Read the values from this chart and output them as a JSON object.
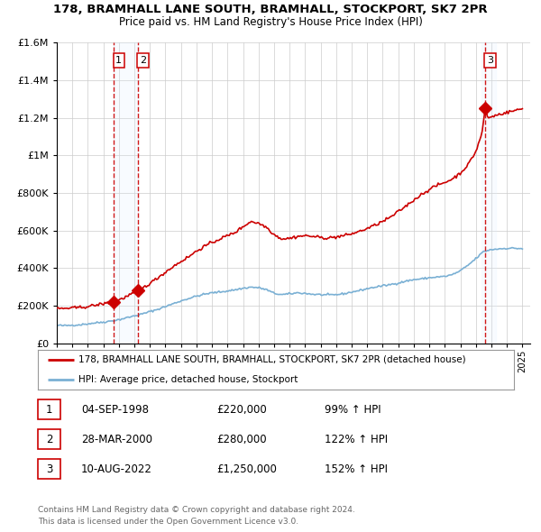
{
  "title1": "178, BRAMHALL LANE SOUTH, BRAMHALL, STOCKPORT, SK7 2PR",
  "title2": "Price paid vs. HM Land Registry's House Price Index (HPI)",
  "ylim": [
    0,
    1600000
  ],
  "yticks": [
    0,
    200000,
    400000,
    600000,
    800000,
    1000000,
    1200000,
    1400000,
    1600000
  ],
  "xmin": 1995.0,
  "xmax": 2025.5,
  "sale_color": "#cc0000",
  "hpi_color": "#7ab0d4",
  "vline_color": "#cc0000",
  "shade_color": "#ddeeff",
  "legend_line1": "178, BRAMHALL LANE SOUTH, BRAMHALL, STOCKPORT, SK7 2PR (detached house)",
  "legend_line2": "HPI: Average price, detached house, Stockport",
  "transactions": [
    {
      "num": 1,
      "date_num": 1998.674,
      "price": 220000,
      "label": "1"
    },
    {
      "num": 2,
      "date_num": 2000.24,
      "price": 280000,
      "label": "2"
    },
    {
      "num": 3,
      "date_num": 2022.6,
      "price": 1250000,
      "label": "3"
    }
  ],
  "table_rows": [
    [
      "1",
      "04-SEP-1998",
      "£220,000",
      "99% ↑ HPI"
    ],
    [
      "2",
      "28-MAR-2000",
      "£280,000",
      "122% ↑ HPI"
    ],
    [
      "3",
      "10-AUG-2022",
      "£1,250,000",
      "152% ↑ HPI"
    ]
  ],
  "footer": "Contains HM Land Registry data © Crown copyright and database right 2024.\nThis data is licensed under the Open Government Licence v3.0.",
  "bg_color": "#ffffff",
  "grid_color": "#cccccc",
  "hpi_anchors": [
    [
      1995.0,
      95000
    ],
    [
      1995.5,
      93000
    ],
    [
      1996.0,
      96000
    ],
    [
      1996.5,
      98000
    ],
    [
      1997.0,
      103000
    ],
    [
      1997.5,
      108000
    ],
    [
      1998.0,
      112000
    ],
    [
      1998.5,
      118000
    ],
    [
      1999.0,
      125000
    ],
    [
      1999.5,
      135000
    ],
    [
      2000.0,
      145000
    ],
    [
      2000.5,
      155000
    ],
    [
      2001.0,
      168000
    ],
    [
      2001.5,
      180000
    ],
    [
      2002.0,
      195000
    ],
    [
      2002.5,
      210000
    ],
    [
      2003.0,
      225000
    ],
    [
      2003.5,
      238000
    ],
    [
      2004.0,
      250000
    ],
    [
      2004.5,
      260000
    ],
    [
      2005.0,
      268000
    ],
    [
      2005.5,
      272000
    ],
    [
      2006.0,
      278000
    ],
    [
      2006.5,
      284000
    ],
    [
      2007.0,
      292000
    ],
    [
      2007.5,
      298000
    ],
    [
      2008.0,
      295000
    ],
    [
      2008.5,
      285000
    ],
    [
      2009.0,
      265000
    ],
    [
      2009.5,
      258000
    ],
    [
      2010.0,
      262000
    ],
    [
      2010.5,
      268000
    ],
    [
      2011.0,
      265000
    ],
    [
      2011.5,
      260000
    ],
    [
      2012.0,
      258000
    ],
    [
      2012.5,
      256000
    ],
    [
      2013.0,
      258000
    ],
    [
      2013.5,
      263000
    ],
    [
      2014.0,
      272000
    ],
    [
      2014.5,
      280000
    ],
    [
      2015.0,
      290000
    ],
    [
      2015.5,
      298000
    ],
    [
      2016.0,
      305000
    ],
    [
      2016.5,
      312000
    ],
    [
      2017.0,
      320000
    ],
    [
      2017.5,
      330000
    ],
    [
      2018.0,
      338000
    ],
    [
      2018.5,
      342000
    ],
    [
      2019.0,
      348000
    ],
    [
      2019.5,
      352000
    ],
    [
      2020.0,
      355000
    ],
    [
      2020.5,
      365000
    ],
    [
      2021.0,
      385000
    ],
    [
      2021.5,
      415000
    ],
    [
      2022.0,
      450000
    ],
    [
      2022.5,
      488000
    ],
    [
      2023.0,
      498000
    ],
    [
      2023.5,
      502000
    ],
    [
      2024.0,
      505000
    ],
    [
      2024.5,
      505000
    ],
    [
      2025.0,
      503000
    ]
  ],
  "price_anchors": [
    [
      1995.0,
      183000
    ],
    [
      1995.5,
      185000
    ],
    [
      1996.0,
      187000
    ],
    [
      1996.5,
      190000
    ],
    [
      1997.0,
      195000
    ],
    [
      1997.5,
      202000
    ],
    [
      1998.0,
      210000
    ],
    [
      1998.674,
      220000
    ],
    [
      1999.0,
      230000
    ],
    [
      1999.5,
      248000
    ],
    [
      2000.24,
      280000
    ],
    [
      2000.5,
      292000
    ],
    [
      2001.0,
      318000
    ],
    [
      2001.5,
      348000
    ],
    [
      2002.0,
      378000
    ],
    [
      2002.5,
      408000
    ],
    [
      2003.0,
      435000
    ],
    [
      2003.5,
      460000
    ],
    [
      2004.0,
      490000
    ],
    [
      2004.5,
      515000
    ],
    [
      2005.0,
      535000
    ],
    [
      2005.5,
      555000
    ],
    [
      2006.0,
      572000
    ],
    [
      2006.5,
      590000
    ],
    [
      2007.0,
      620000
    ],
    [
      2007.5,
      648000
    ],
    [
      2008.0,
      638000
    ],
    [
      2008.5,
      618000
    ],
    [
      2009.0,
      578000
    ],
    [
      2009.5,
      555000
    ],
    [
      2010.0,
      558000
    ],
    [
      2010.5,
      568000
    ],
    [
      2011.0,
      572000
    ],
    [
      2011.5,
      568000
    ],
    [
      2012.0,
      562000
    ],
    [
      2012.5,
      560000
    ],
    [
      2013.0,
      565000
    ],
    [
      2013.5,
      572000
    ],
    [
      2014.0,
      582000
    ],
    [
      2014.5,
      595000
    ],
    [
      2015.0,
      610000
    ],
    [
      2015.5,
      628000
    ],
    [
      2016.0,
      648000
    ],
    [
      2016.5,
      670000
    ],
    [
      2017.0,
      700000
    ],
    [
      2017.5,
      730000
    ],
    [
      2018.0,
      762000
    ],
    [
      2018.5,
      792000
    ],
    [
      2019.0,
      818000
    ],
    [
      2019.5,
      840000
    ],
    [
      2020.0,
      855000
    ],
    [
      2020.5,
      875000
    ],
    [
      2021.0,
      905000
    ],
    [
      2021.5,
      950000
    ],
    [
      2022.0,
      1020000
    ],
    [
      2022.4,
      1120000
    ],
    [
      2022.6,
      1250000
    ],
    [
      2022.8,
      1195000
    ],
    [
      2023.0,
      1205000
    ],
    [
      2023.5,
      1218000
    ],
    [
      2024.0,
      1228000
    ],
    [
      2024.5,
      1238000
    ],
    [
      2025.0,
      1248000
    ]
  ]
}
